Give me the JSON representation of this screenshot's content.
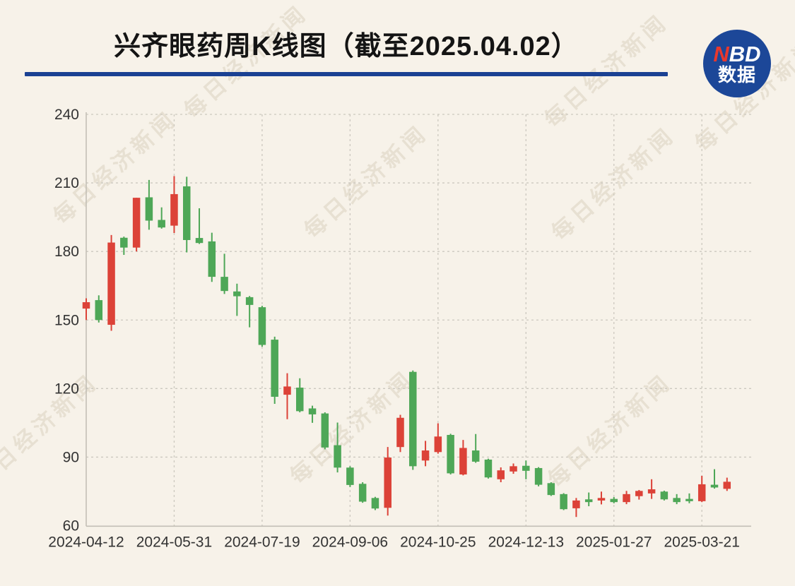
{
  "page": {
    "background": "#f7f2e9"
  },
  "header": {
    "title": "兴齐眼药周K线图（截至2025.04.02）",
    "underline_color": "#1b4193"
  },
  "logo": {
    "text_n": "N",
    "text_bd": "BD",
    "text_cn": "数据",
    "circle_color": "#1c4798",
    "n_color": "#e8382d"
  },
  "watermark": {
    "text": "每日经济新闻",
    "color": "rgba(150,128,92,0.16)"
  },
  "chart_data": {
    "type": "candlestick",
    "title": "兴齐眼药周K线图（截至2025.04.02）",
    "period": "weekly",
    "up_color": "#dc4238",
    "down_color": "#4ea757",
    "color_convention": "red = close above open (up week), green = close below open (down week)",
    "ylim": [
      60,
      240
    ],
    "y_ticks": [
      240,
      210,
      180,
      150,
      120,
      90,
      60
    ],
    "x_tick_labels": [
      "2024-04-12",
      "2024-05-31",
      "2024-07-19",
      "2024-09-06",
      "2024-10-25",
      "2024-12-13",
      "2025-01-27",
      "2025-03-21"
    ],
    "x_tick_indices": [
      0,
      7,
      14,
      21,
      28,
      35,
      42,
      49
    ],
    "grid": "dashed",
    "axis_text_color": "#333333",
    "candle_format": [
      "open",
      "high",
      "low",
      "close"
    ],
    "candles": [
      [
        155.0,
        159.5,
        150.0,
        157.8
      ],
      [
        158.7,
        160.8,
        148.9,
        150.0
      ],
      [
        147.9,
        187.2,
        145.3,
        183.9
      ],
      [
        186.0,
        186.5,
        178.5,
        181.7
      ],
      [
        181.7,
        203.5,
        180.0,
        203.5
      ],
      [
        203.7,
        211.3,
        189.5,
        193.5
      ],
      [
        193.8,
        199.3,
        190.0,
        190.5
      ],
      [
        191.3,
        213.0,
        188.1,
        205.1
      ],
      [
        208.5,
        212.7,
        179.6,
        185.0
      ],
      [
        185.9,
        198.9,
        183.3,
        183.7
      ],
      [
        184.4,
        188.2,
        166.7,
        168.9
      ],
      [
        168.9,
        179.0,
        161.4,
        162.7
      ],
      [
        162.5,
        165.9,
        151.8,
        160.4
      ],
      [
        160.0,
        160.5,
        146.8,
        156.6
      ],
      [
        155.6,
        156.2,
        138.3,
        139.1
      ],
      [
        141.4,
        142.7,
        113.3,
        116.4
      ],
      [
        117.3,
        126.7,
        106.6,
        120.9
      ],
      [
        120.4,
        124.5,
        109.6,
        110.1
      ],
      [
        111.3,
        112.5,
        105.0,
        108.7
      ],
      [
        109.1,
        109.6,
        93.4,
        94.2
      ],
      [
        95.2,
        105.1,
        83.3,
        85.4
      ],
      [
        85.4,
        86.0,
        76.9,
        77.8
      ],
      [
        78.3,
        79.0,
        70.0,
        70.5
      ],
      [
        72.1,
        72.6,
        66.8,
        67.5
      ],
      [
        67.8,
        94.4,
        64.4,
        89.8
      ],
      [
        94.4,
        108.5,
        92.2,
        107.2
      ],
      [
        127.3,
        127.9,
        84.4,
        86.0
      ],
      [
        88.5,
        97.1,
        86.0,
        92.9
      ],
      [
        92.2,
        104.8,
        91.5,
        99.0
      ],
      [
        99.7,
        100.2,
        82.4,
        82.9
      ],
      [
        82.4,
        97.5,
        82.0,
        94.0
      ],
      [
        92.9,
        100.1,
        87.5,
        88.0
      ],
      [
        88.9,
        89.3,
        80.6,
        81.1
      ],
      [
        80.3,
        85.5,
        79.0,
        84.2
      ],
      [
        83.7,
        87.2,
        82.7,
        86.0
      ],
      [
        86.2,
        88.5,
        80.3,
        84.0
      ],
      [
        85.2,
        85.6,
        77.2,
        77.9
      ],
      [
        78.6,
        79.0,
        73.0,
        73.4
      ],
      [
        73.8,
        74.2,
        66.8,
        67.2
      ],
      [
        67.6,
        72.1,
        63.8,
        71.0
      ],
      [
        71.5,
        74.5,
        68.5,
        70.3
      ],
      [
        71.0,
        74.9,
        69.3,
        72.1
      ],
      [
        71.7,
        72.5,
        69.8,
        70.3
      ],
      [
        70.3,
        75.2,
        69.4,
        73.8
      ],
      [
        72.9,
        75.6,
        71.4,
        75.2
      ],
      [
        74.1,
        80.3,
        71.7,
        75.9
      ],
      [
        74.9,
        75.3,
        71.0,
        71.5
      ],
      [
        72.1,
        73.8,
        69.4,
        70.3
      ],
      [
        71.7,
        74.1,
        69.8,
        70.7
      ],
      [
        70.7,
        81.8,
        70.3,
        78.1
      ],
      [
        77.9,
        84.7,
        76.2,
        76.7
      ],
      [
        76.1,
        81.0,
        75.2,
        79.2
      ]
    ]
  }
}
